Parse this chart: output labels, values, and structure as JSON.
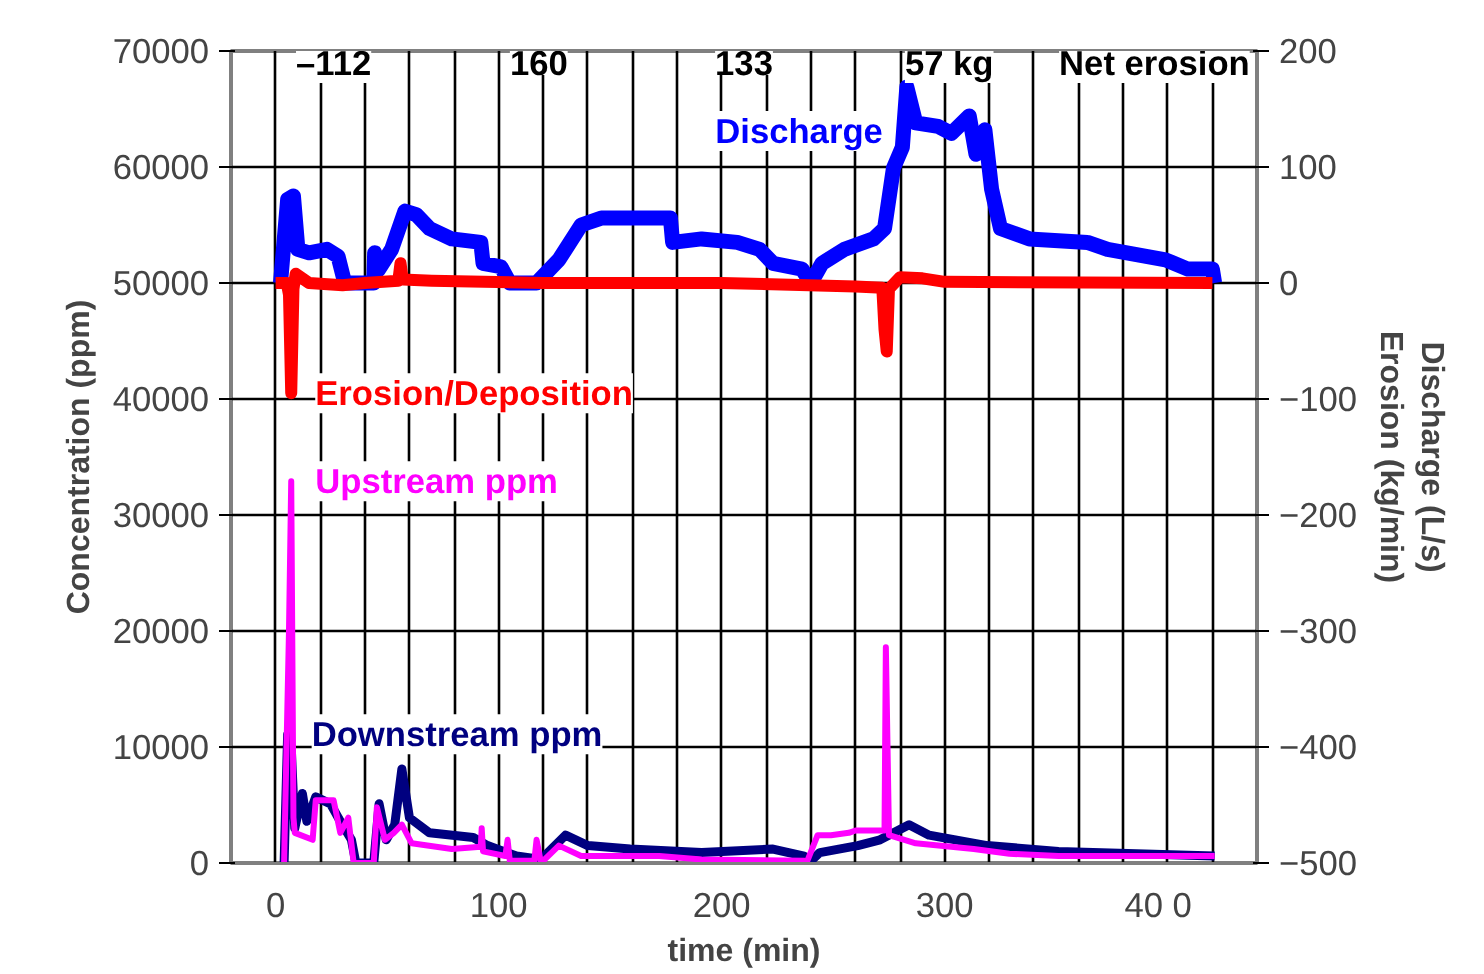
{
  "chart_data": {
    "type": "line",
    "xlabel": "time (min)",
    "ylabel": "Concentration (ppm)",
    "y2label": "Discharge (L/s)\nErosion (kg/min)",
    "xlim": [
      -20,
      440
    ],
    "xticks": [
      {
        "value": 0,
        "label": "0"
      },
      {
        "value": 20,
        "label": null
      },
      {
        "value": 40,
        "label": null
      },
      {
        "value": 60,
        "label": null
      },
      {
        "value": 80,
        "label": null
      },
      {
        "value": 100,
        "label": "100"
      },
      {
        "value": 120,
        "label": null
      },
      {
        "value": 140,
        "label": null
      },
      {
        "value": 160,
        "label": null
      },
      {
        "value": 180,
        "label": null
      },
      {
        "value": 200,
        "label": "200"
      },
      {
        "value": 220,
        "label": null
      },
      {
        "value": 240,
        "label": null
      },
      {
        "value": 260,
        "label": null
      },
      {
        "value": 280,
        "label": null
      },
      {
        "value": 300,
        "label": "300"
      },
      {
        "value": 320,
        "label": null
      },
      {
        "value": 340,
        "label": null
      },
      {
        "value": 360,
        "label": null
      },
      {
        "value": 380,
        "label": null
      },
      {
        "value": 400,
        "label": "40   0"
      },
      {
        "value": 420,
        "label": null
      }
    ],
    "ylim": [
      0,
      70000
    ],
    "yticks": [
      0,
      10000,
      20000,
      30000,
      40000,
      50000,
      60000,
      70000
    ],
    "y2lim": [
      -500,
      200
    ],
    "y2ticks": [
      -500,
      -400,
      -300,
      -200,
      -100,
      0,
      100,
      200
    ],
    "grid": true,
    "marker": "none",
    "line_style": "solid",
    "series": [
      {
        "name": "Discharge",
        "color": "#0000ff",
        "axis": "y2",
        "x": [
          2.2,
          5.4,
          8,
          10,
          15,
          23,
          28,
          31,
          44,
          44.4,
          46,
          52,
          58,
          63,
          69,
          79,
          92,
          93,
          101,
          105,
          117,
          127,
          137,
          146,
          177,
          178,
          191,
          207,
          217,
          223,
          236,
          240,
          245,
          255,
          268,
          273,
          277,
          281,
          283,
          287,
          297,
          303,
          311,
          314,
          318,
          321,
          325,
          338,
          364,
          373,
          399,
          409,
          420,
          421
        ],
        "values": [
          0,
          72,
          75,
          29,
          26,
          29,
          23,
          0,
          0,
          26,
          11,
          29,
          62,
          59,
          47,
          38,
          35,
          17,
          14,
          0,
          0,
          20,
          50,
          56,
          56,
          35,
          38,
          35,
          29,
          17,
          12,
          0,
          17,
          29,
          38,
          47,
          99,
          117,
          169,
          138,
          135,
          129,
          144,
          111,
          132,
          81,
          47,
          38,
          35,
          29,
          20,
          12,
          12,
          0
        ]
      },
      {
        "name": "Erosion/Deposition",
        "color": "#ff0000",
        "axis": "y2",
        "x": [
          0,
          5,
          6,
          7,
          8,
          9,
          15,
          30,
          40,
          55,
          56,
          57,
          70,
          120,
          200,
          260,
          272,
          273,
          274,
          275,
          280,
          290,
          300,
          420
        ],
        "values": [
          0,
          0,
          -10,
          -95,
          -5,
          8,
          0,
          -2,
          0,
          2,
          17,
          3,
          2,
          0,
          0,
          -3,
          -4,
          -40,
          -59,
          -5,
          5,
          4,
          1,
          0
        ]
      },
      {
        "name": "Downstream ppm",
        "color": "#000080",
        "x": [
          3.8,
          5.4,
          7,
          8.6,
          12,
          14,
          18,
          24.6,
          29,
          34,
          36,
          44,
          46.4,
          49.6,
          53.4,
          56.6,
          60,
          69,
          88.6,
          95,
          108,
          119,
          130,
          140,
          159,
          191,
          223,
          237,
          239,
          244,
          261,
          271,
          284,
          293,
          319,
          351,
          421
        ],
        "values": [
          0,
          11100,
          10000,
          3000,
          6000,
          3600,
          5700,
          5100,
          3600,
          2000,
          0,
          0,
          5100,
          2000,
          3300,
          8100,
          3900,
          2600,
          2200,
          1500,
          600,
          300,
          2400,
          1500,
          1200,
          900,
          1200,
          600,
          0,
          900,
          1500,
          2000,
          3300,
          2400,
          1500,
          1000,
          600
        ]
      },
      {
        "name": "Upstream ppm",
        "color": "#ff00ff",
        "x": [
          3.8,
          6,
          7,
          8,
          8.6,
          16.6,
          18,
          26,
          29,
          32.6,
          35,
          44,
          45.4,
          49,
          53,
          56.6,
          61,
          79,
          92,
          92.4,
          93,
          103,
          104,
          105,
          116,
          117,
          119,
          127,
          137,
          172,
          191,
          237,
          238,
          243,
          249,
          257,
          260,
          273,
          273.6,
          275,
          287,
          313,
          329,
          351,
          421
        ],
        "values": [
          0,
          20000,
          32900,
          3900,
          2600,
          2000,
          5400,
          5400,
          2600,
          3900,
          0,
          0,
          4800,
          2000,
          2600,
          3300,
          1700,
          1200,
          1400,
          3000,
          1000,
          600,
          2000,
          200,
          200,
          2000,
          0,
          1500,
          600,
          600,
          300,
          200,
          0,
          2400,
          2400,
          2600,
          2800,
          2800,
          18600,
          2400,
          1700,
          1200,
          800,
          600,
          600
        ]
      }
    ],
    "annotations": [
      "–112",
      "160",
      "133",
      "57 kg",
      "Net erosion"
    ]
  }
}
